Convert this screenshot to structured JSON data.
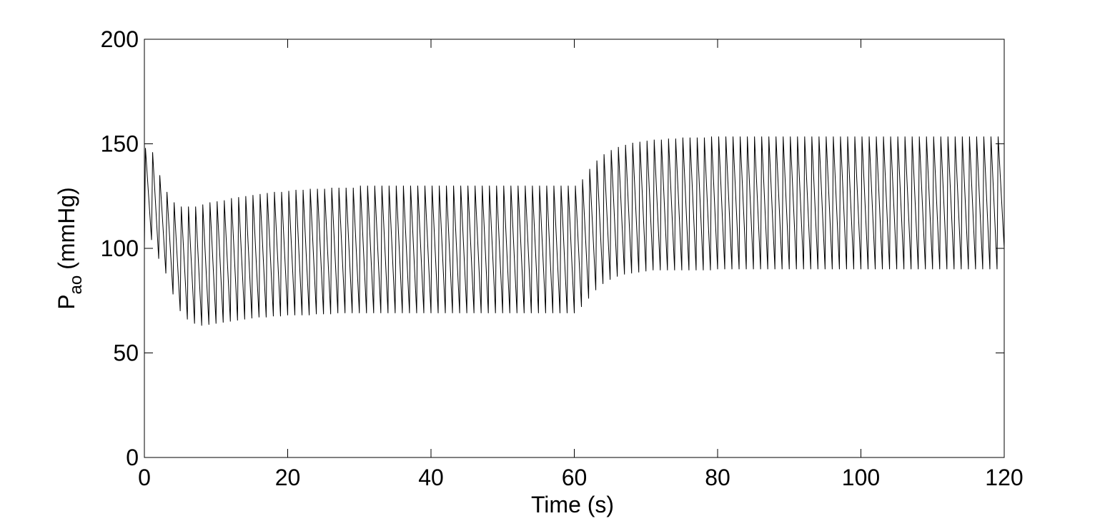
{
  "chart_data": {
    "type": "line",
    "xlabel": "Time (s)",
    "ylabel": {
      "main": "P",
      "sub": "ao",
      "unit": "(mmHg)"
    },
    "xlim": [
      0,
      120
    ],
    "xticks": [
      0,
      20,
      40,
      60,
      80,
      100,
      120
    ],
    "ylim": [
      0,
      200
    ],
    "yticks": [
      0,
      50,
      100,
      150,
      200
    ],
    "color": "#000000",
    "x": [
      0,
      0.15,
      1,
      1.15,
      2,
      2.15,
      3,
      3.15,
      4,
      4.15,
      5,
      5.15,
      6,
      6.15,
      7,
      7.15,
      8,
      8.15,
      9,
      9.15,
      10,
      10.15,
      11,
      11.15,
      12,
      12.15,
      13,
      13.15,
      14,
      14.15,
      15,
      15.15,
      16,
      16.15,
      17,
      17.15,
      18,
      18.15,
      19,
      19.15,
      20,
      20.15,
      21,
      21.15,
      22,
      22.15,
      23,
      23.15,
      24,
      24.15,
      25,
      25.15,
      26,
      26.15,
      27,
      27.15,
      28,
      28.15,
      29,
      29.15,
      30,
      30.15,
      31,
      31.15,
      32,
      32.15,
      33,
      33.15,
      34,
      34.15,
      35,
      35.15,
      36,
      36.15,
      37,
      37.15,
      38,
      38.15,
      39,
      39.15,
      40,
      40.15,
      41,
      41.15,
      42,
      42.15,
      43,
      43.15,
      44,
      44.15,
      45,
      45.15,
      46,
      46.15,
      47,
      47.15,
      48,
      48.15,
      49,
      49.15,
      50,
      50.15,
      51,
      51.15,
      52,
      52.15,
      53,
      53.15,
      54,
      54.15,
      55,
      55.15,
      56,
      56.15,
      57,
      57.15,
      58,
      58.15,
      59,
      59.15,
      60,
      60.15,
      61,
      61.15,
      62,
      62.15,
      63,
      63.15,
      64,
      64.15,
      65,
      65.15,
      66,
      66.15,
      67,
      67.15,
      68,
      68.15,
      69,
      69.15,
      70,
      70.15,
      71,
      71.15,
      72,
      72.15,
      73,
      73.15,
      74,
      74.15,
      75,
      75.15,
      76,
      76.15,
      77,
      77.15,
      78,
      78.15,
      79,
      79.15,
      80,
      80.15,
      81,
      81.15,
      82,
      82.15,
      83,
      83.15,
      84,
      84.15,
      85,
      85.15,
      86,
      86.15,
      87,
      87.15,
      88,
      88.15,
      89,
      89.15,
      90,
      90.15,
      91,
      91.15,
      92,
      92.15,
      93,
      93.15,
      94,
      94.15,
      95,
      95.15,
      96,
      96.15,
      97,
      97.15,
      98,
      98.15,
      99,
      99.15,
      100,
      100.15,
      101,
      101.15,
      102,
      102.15,
      103,
      103.15,
      104,
      104.15,
      105,
      105.15,
      106,
      106.15,
      107,
      107.15,
      108,
      108.15,
      109,
      109.15,
      110,
      110.15,
      111,
      111.15,
      112,
      112.15,
      113,
      113.15,
      114,
      114.15,
      115,
      115.15,
      116,
      116.15,
      117,
      117.15,
      118,
      118.15,
      119,
      119.15,
      120
    ],
    "values": [
      100,
      148,
      104,
      146,
      95,
      135,
      88,
      127,
      78,
      122,
      70,
      120,
      66,
      120,
      64,
      120,
      63,
      121,
      63.5,
      122,
      64,
      122.5,
      64.5,
      123,
      65,
      124,
      65.5,
      124.5,
      66,
      125,
      66.5,
      125.5,
      67,
      126,
      67,
      126.5,
      67.5,
      127,
      67.5,
      127,
      68,
      127.5,
      68,
      128,
      68,
      128,
      68,
      128.5,
      68.5,
      128.5,
      68.5,
      128.5,
      68.5,
      129,
      69,
      129,
      69,
      129,
      69,
      129,
      69,
      130,
      69,
      130,
      69,
      130,
      69,
      130,
      69,
      130,
      69,
      130,
      69,
      130,
      69,
      130,
      69,
      130,
      69,
      130,
      69,
      130,
      69,
      130,
      69,
      130,
      69,
      130,
      69,
      130,
      69,
      130,
      69,
      130,
      69,
      130,
      69,
      130,
      69,
      130,
      69,
      130,
      69,
      130,
      69,
      130,
      69,
      130,
      69,
      130,
      69,
      130,
      69,
      130,
      69,
      130,
      69,
      130,
      69,
      130,
      69,
      130,
      72,
      133,
      76,
      138,
      80,
      142,
      83,
      145,
      85,
      147,
      86.5,
      148.5,
      87.5,
      149.5,
      88,
      150.5,
      88.5,
      151,
      89,
      151.5,
      89.5,
      152,
      89.5,
      152,
      89.5,
      152.5,
      89.5,
      152.5,
      89.5,
      153,
      89.5,
      153,
      89.5,
      153,
      89.5,
      153,
      89.5,
      153.5,
      90,
      153.5,
      90,
      153.5,
      90,
      153.5,
      90,
      153.5,
      90,
      153.5,
      90,
      153.5,
      90,
      153.5,
      90,
      153.5,
      90,
      153.5,
      90,
      153.5,
      90,
      153.5,
      90,
      153.5,
      90,
      153.5,
      90,
      153.5,
      90,
      153.5,
      90,
      153.5,
      90,
      153.5,
      90,
      153.5,
      90,
      153.5,
      90,
      153.5,
      90,
      153.5,
      90,
      153.5,
      90,
      153.5,
      90,
      153.5,
      90,
      153.5,
      90,
      153.5,
      90,
      153.5,
      90,
      153.5,
      90,
      153.5,
      90,
      153.5,
      90,
      153.5,
      90,
      153.5,
      90,
      153.5,
      90,
      153.5,
      90,
      153.5,
      90,
      153.5,
      90,
      153.5,
      90,
      153.5,
      90,
      153.5,
      90,
      153.5,
      100
    ]
  }
}
